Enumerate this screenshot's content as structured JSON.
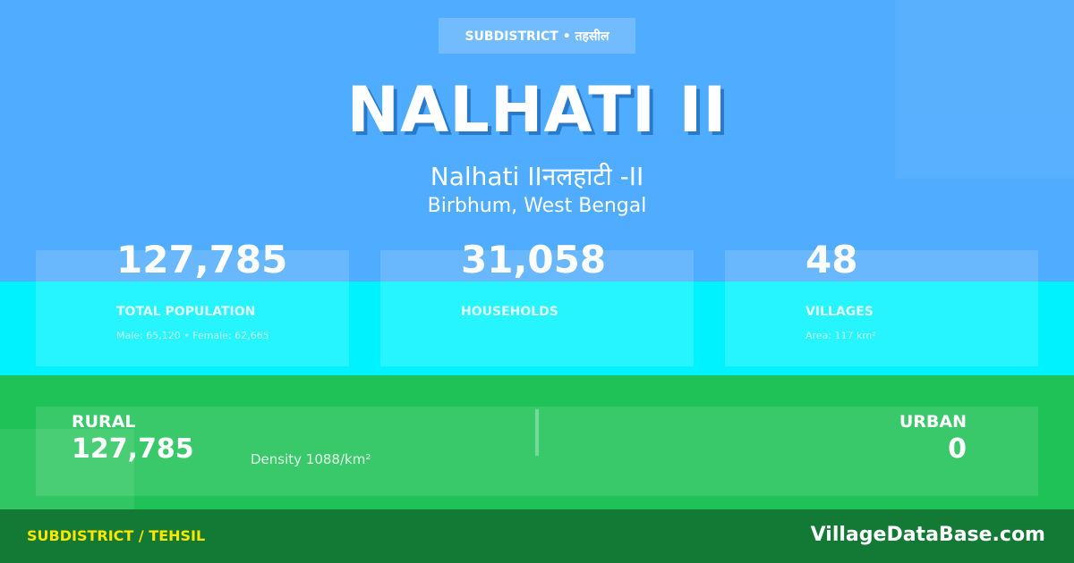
{
  "badge": "SUBDISTRICT • तहसील",
  "title": "NALHATI II",
  "subtitle": "Nalhati IIनलहाटी -II",
  "location": "Birbhum, West Bengal",
  "stats": [
    {
      "value": "127,785",
      "label": "TOTAL POPULATION",
      "note": "Male: 65,120 • Female: 62,665"
    },
    {
      "value": "31,058",
      "label": "HOUSEHOLDS",
      "note": ""
    },
    {
      "value": "48",
      "label": "VILLAGES",
      "note": "Area: 117 km²"
    }
  ],
  "rural": {
    "label": "RURAL",
    "value": "127,785",
    "density": "Density 1088/km²"
  },
  "urban": {
    "label": "URBAN",
    "value": "0"
  },
  "footer": {
    "left": "SUBDISTRICT / TEHSIL",
    "right": "VillageDataBase.com"
  },
  "colors": {
    "top": "#4facfe",
    "middle": "#00f2fe",
    "bottom": "#1fc256",
    "footer": "#137a35",
    "accent": "#ffe600"
  }
}
